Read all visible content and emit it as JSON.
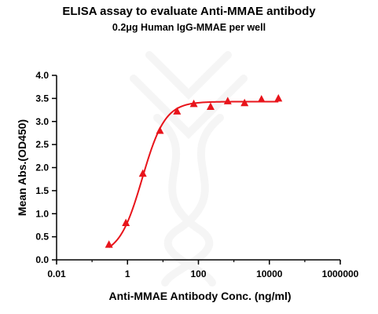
{
  "chart_data": {
    "type": "scatter",
    "title": "ELISA assay to evaluate Anti-MMAE antibody",
    "subtitle": "0.2μg Human IgG-MMAE per well",
    "xlabel": "Anti-MMAE Antibody Conc. (ng/ml)",
    "ylabel": "Mean Abs.(OD450)",
    "x_scale": "log",
    "xlim": [
      0.01,
      1000000
    ],
    "ylim": [
      0,
      4.0
    ],
    "x_ticks": [
      0.01,
      1,
      100,
      10000,
      1000000
    ],
    "x_tick_labels": [
      "0.01",
      "1",
      "100",
      "10000",
      "1000000"
    ],
    "y_ticks": [
      0,
      0.5,
      1.0,
      1.5,
      2.0,
      2.5,
      3.0,
      3.5,
      4.0
    ],
    "y_tick_labels": [
      "0.0",
      "0.5",
      "1.0",
      "1.5",
      "2.0",
      "2.5",
      "3.0",
      "3.5",
      "4.0"
    ],
    "series": [
      {
        "color": "#e8141b",
        "marker": "triangle",
        "x": [
          0.3,
          0.9,
          2.7,
          8.2,
          25,
          74,
          220,
          670,
          2000,
          6000,
          18000
        ],
        "y": [
          0.33,
          0.8,
          1.87,
          2.8,
          3.22,
          3.38,
          3.32,
          3.44,
          3.4,
          3.48,
          3.5
        ]
      }
    ],
    "fit_curve": {
      "color": "#e8141b",
      "model": "4PL",
      "bottom": 0.1,
      "top": 3.43,
      "ec50": 2.6,
      "hill": 1.35,
      "x_range": [
        0.3,
        18000
      ]
    }
  }
}
